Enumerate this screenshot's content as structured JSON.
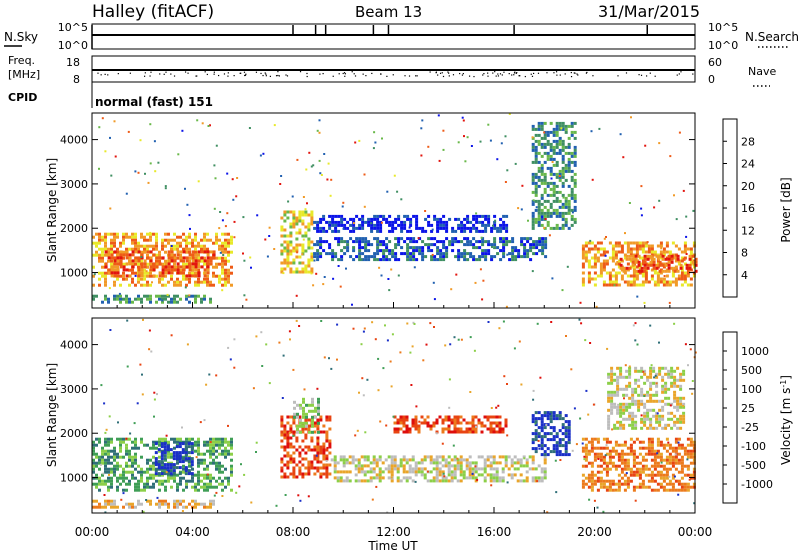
{
  "header": {
    "radar": "Halley (fitACF)",
    "beam": "Beam 13",
    "date": "31/Mar/2015"
  },
  "strip_nsky": {
    "left_label": "N.Sky",
    "left_ticks": [
      "10^5",
      "10^0"
    ],
    "right_label": "N.Search",
    "right_ticks": [
      "10^5",
      "10^0"
    ]
  },
  "strip_freq": {
    "left_label_1": "Freq.",
    "left_label_2": "[MHz]",
    "left_ticks": [
      "18",
      "8"
    ],
    "right_label": "Nave",
    "right_ticks": [
      "60",
      "0"
    ]
  },
  "cpid": {
    "label": "CPID",
    "value": "normal (fast) 151"
  },
  "chart_data": [
    {
      "type": "heatmap",
      "panel": "power",
      "ylabel": "Slant Range [km]",
      "y_ticks": [
        "1000",
        "2000",
        "3000",
        "4000"
      ],
      "ylim": [
        200,
        4600
      ],
      "xlim": [
        0,
        24
      ],
      "colorbar_label": "Power [dB]",
      "colorbar_ticks": [
        "4",
        "8",
        "12",
        "16",
        "20",
        "24",
        "28"
      ],
      "colors": [
        "#0b13e8",
        "#2160b0",
        "#3f8f62",
        "#69b84a",
        "#e8e92a",
        "#f19a27",
        "#ee5b17",
        "#e2140e"
      ],
      "regions": [
        {
          "x": [
            0.0,
            5.5
          ],
          "y": [
            700,
            1900
          ],
          "level": 5
        },
        {
          "x": [
            0.5,
            4.8
          ],
          "y": [
            900,
            1500
          ],
          "level": 6
        },
        {
          "x": [
            0.0,
            4.8
          ],
          "y": [
            300,
            500
          ],
          "level": 2
        },
        {
          "x": [
            7.5,
            8.8
          ],
          "y": [
            1000,
            2400
          ],
          "level": 4
        },
        {
          "x": [
            8.8,
            18.0
          ],
          "y": [
            1300,
            1800
          ],
          "level": 1
        },
        {
          "x": [
            8.8,
            16.5
          ],
          "y": [
            1900,
            2300
          ],
          "level": 0
        },
        {
          "x": [
            17.5,
            19.2
          ],
          "y": [
            2000,
            4400
          ],
          "level": 2
        },
        {
          "x": [
            19.5,
            24.0
          ],
          "y": [
            700,
            1700
          ],
          "level": 5
        },
        {
          "x": [
            21.0,
            24.0
          ],
          "y": [
            1000,
            1400
          ],
          "level": 6
        }
      ]
    },
    {
      "type": "heatmap",
      "panel": "velocity",
      "ylabel": "Slant Range [km]",
      "y_ticks": [
        "1000",
        "2000",
        "3000",
        "4000"
      ],
      "ylim": [
        200,
        4600
      ],
      "xlim": [
        0,
        24
      ],
      "colorbar_label": "Velocity [m s^-1]",
      "colorbar_ticks": [
        "1000",
        "500",
        "100",
        "25",
        "-25",
        "-100",
        "-500",
        "-1000"
      ],
      "colors": [
        "#1a2fc8",
        "#2f6f78",
        "#3f9e56",
        "#8ccf48",
        "#bdbdbd",
        "#e9a52a",
        "#ec7a1c",
        "#e84412",
        "#de0d0b"
      ],
      "regions": [
        {
          "x": [
            0.0,
            5.5
          ],
          "y": [
            700,
            1900
          ],
          "level": 2
        },
        {
          "x": [
            2.5,
            4.0
          ],
          "y": [
            1100,
            1800
          ],
          "level": 0
        },
        {
          "x": [
            0.0,
            4.8
          ],
          "y": [
            300,
            500
          ],
          "level": 5
        },
        {
          "x": [
            7.5,
            9.5
          ],
          "y": [
            1000,
            2400
          ],
          "level": 7
        },
        {
          "x": [
            8.0,
            9.0
          ],
          "y": [
            2000,
            2800
          ],
          "level": 3
        },
        {
          "x": [
            9.5,
            18.0
          ],
          "y": [
            900,
            1500
          ],
          "level": 4
        },
        {
          "x": [
            12.0,
            16.5
          ],
          "y": [
            2000,
            2400
          ],
          "level": 7
        },
        {
          "x": [
            17.5,
            19.0
          ],
          "y": [
            1500,
            2500
          ],
          "level": 0
        },
        {
          "x": [
            19.5,
            24.0
          ],
          "y": [
            700,
            1900
          ],
          "level": 6
        },
        {
          "x": [
            20.5,
            23.5
          ],
          "y": [
            2100,
            3500
          ],
          "level": 4
        }
      ]
    }
  ],
  "x_axis": {
    "label": "Time UT",
    "ticks": [
      "00:00",
      "04:00",
      "08:00",
      "12:00",
      "16:00",
      "20:00",
      "00:00"
    ],
    "tick_hours": [
      0,
      4,
      8,
      12,
      16,
      20,
      24
    ]
  }
}
